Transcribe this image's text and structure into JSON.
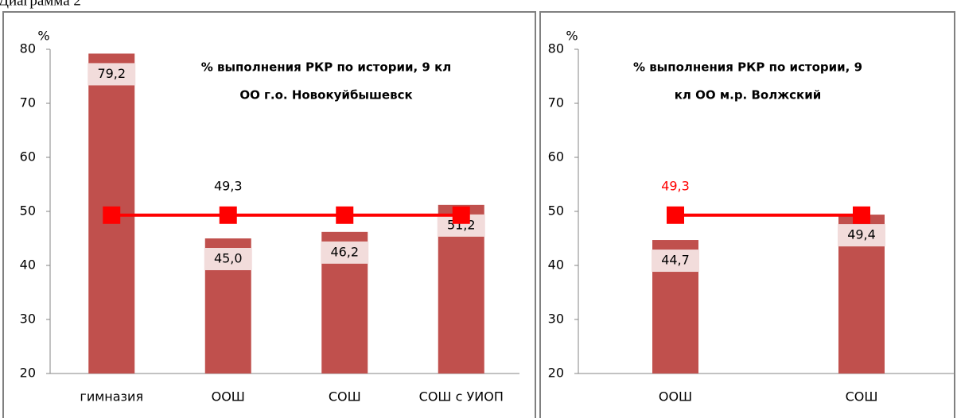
{
  "caption": "Диаграмма 2",
  "chart_data": [
    {
      "type": "bar",
      "title": [
        "% выполнения РКР по истории, 9 кл",
        "ОО г.о. Новокуйбышевск"
      ],
      "ylabel": "%",
      "categories": [
        "гимназия",
        "ООШ",
        "СОШ",
        "СОШ с УИОП"
      ],
      "series": [
        {
          "kind": "bar",
          "color": "#c0504d",
          "values": [
            79.2,
            45.0,
            46.2,
            51.2
          ],
          "value_labels": [
            "79,2",
            "45,0",
            "46,2",
            "51,2"
          ]
        },
        {
          "kind": "line",
          "color": "#ff0000",
          "values": [
            49.3,
            49.3,
            49.3,
            49.3
          ],
          "value_labels": [
            null,
            "49,3",
            null,
            null
          ],
          "value_label_color": "#000000"
        }
      ],
      "ylim": [
        20,
        80
      ],
      "yticks": [
        20,
        30,
        40,
        50,
        60,
        70,
        80
      ]
    },
    {
      "type": "bar",
      "title": [
        "% выполнения РКР по истории, 9",
        "кл ОО м.р. Волжский"
      ],
      "ylabel": "%",
      "categories": [
        "ООШ",
        "СОШ"
      ],
      "series": [
        {
          "kind": "bar",
          "color": "#c0504d",
          "values": [
            44.7,
            49.4
          ],
          "value_labels": [
            "44,7",
            "49,4"
          ]
        },
        {
          "kind": "line",
          "color": "#ff0000",
          "values": [
            49.3,
            49.3
          ],
          "value_labels": [
            "49,3",
            null
          ],
          "value_label_color": "#ff0000"
        }
      ],
      "ylim": [
        20,
        80
      ],
      "yticks": [
        20,
        30,
        40,
        50,
        60,
        70,
        80
      ]
    }
  ]
}
